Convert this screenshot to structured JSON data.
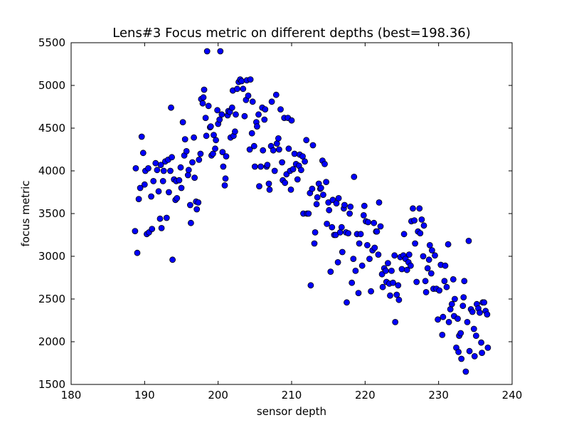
{
  "chart_data": {
    "type": "scatter",
    "title": "Lens#3 Focus metric on different depths (best=198.36)",
    "xlabel": "sensor depth",
    "ylabel": "focus metric",
    "xlim": [
      180,
      240
    ],
    "ylim": [
      1500,
      5500
    ],
    "xticks": [
      180,
      190,
      200,
      210,
      220,
      230,
      240
    ],
    "yticks": [
      1500,
      2000,
      2500,
      3000,
      3500,
      4000,
      4500,
      5000,
      5500
    ],
    "grid": false,
    "legend": "none",
    "marker_color": "#0000ff",
    "marker_edge": "#000000",
    "points": [
      [
        188.7,
        3295
      ],
      [
        188.8,
        4030
      ],
      [
        189.0,
        3040
      ],
      [
        189.2,
        3670
      ],
      [
        189.4,
        3800
      ],
      [
        189.6,
        4400
      ],
      [
        189.8,
        4210
      ],
      [
        190.0,
        3840
      ],
      [
        190.1,
        4000
      ],
      [
        190.3,
        3260
      ],
      [
        190.5,
        4030
      ],
      [
        190.6,
        3280
      ],
      [
        190.9,
        3700
      ],
      [
        191.0,
        3320
      ],
      [
        191.2,
        3880
      ],
      [
        191.5,
        4090
      ],
      [
        191.7,
        4010
      ],
      [
        191.9,
        3760
      ],
      [
        192.1,
        3440
      ],
      [
        192.2,
        4070
      ],
      [
        192.3,
        3330
      ],
      [
        192.5,
        3880
      ],
      [
        192.6,
        4000
      ],
      [
        192.8,
        4110
      ],
      [
        193.0,
        3450
      ],
      [
        193.2,
        4130
      ],
      [
        193.3,
        3750
      ],
      [
        193.5,
        4000
      ],
      [
        193.6,
        4740
      ],
      [
        193.7,
        4160
      ],
      [
        193.8,
        2960
      ],
      [
        194.0,
        3900
      ],
      [
        194.2,
        3660
      ],
      [
        194.3,
        3880
      ],
      [
        194.4,
        3680
      ],
      [
        194.7,
        3890
      ],
      [
        194.9,
        4040
      ],
      [
        195.0,
        3800
      ],
      [
        195.2,
        4570
      ],
      [
        195.4,
        4180
      ],
      [
        195.5,
        4370
      ],
      [
        195.7,
        4230
      ],
      [
        195.9,
        3950
      ],
      [
        196.0,
        4010
      ],
      [
        196.2,
        3600
      ],
      [
        196.3,
        3390
      ],
      [
        196.5,
        4100
      ],
      [
        196.7,
        4390
      ],
      [
        196.8,
        3920
      ],
      [
        197.0,
        3640
      ],
      [
        197.1,
        3550
      ],
      [
        197.3,
        3630
      ],
      [
        197.4,
        4130
      ],
      [
        197.6,
        4200
      ],
      [
        197.7,
        4840
      ],
      [
        197.9,
        4790
      ],
      [
        198.0,
        4860
      ],
      [
        198.1,
        4950
      ],
      [
        198.3,
        4620
      ],
      [
        198.4,
        4410
      ],
      [
        198.5,
        5400
      ],
      [
        198.7,
        4760
      ],
      [
        198.9,
        4510
      ],
      [
        199.0,
        4520
      ],
      [
        199.1,
        4180
      ],
      [
        199.3,
        4200
      ],
      [
        199.4,
        4420
      ],
      [
        199.6,
        4260
      ],
      [
        199.7,
        4360
      ],
      [
        199.9,
        4710
      ],
      [
        200.0,
        4550
      ],
      [
        200.2,
        4600
      ],
      [
        200.3,
        5400
      ],
      [
        200.5,
        4660
      ],
      [
        200.6,
        4220
      ],
      [
        200.7,
        4050
      ],
      [
        200.9,
        3830
      ],
      [
        201.0,
        3910
      ],
      [
        201.1,
        4170
      ],
      [
        201.3,
        4650
      ],
      [
        201.4,
        4700
      ],
      [
        201.6,
        4690
      ],
      [
        201.7,
        4390
      ],
      [
        201.9,
        4740
      ],
      [
        202.0,
        4940
      ],
      [
        202.1,
        4410
      ],
      [
        202.3,
        4460
      ],
      [
        202.4,
        4660
      ],
      [
        202.6,
        4960
      ],
      [
        202.8,
        5040
      ],
      [
        203.0,
        5070
      ],
      [
        203.2,
        5050
      ],
      [
        203.4,
        4960
      ],
      [
        203.6,
        4640
      ],
      [
        203.8,
        4830
      ],
      [
        203.9,
        5060
      ],
      [
        204.1,
        4880
      ],
      [
        204.3,
        4250
      ],
      [
        204.4,
        5070
      ],
      [
        204.6,
        4440
      ],
      [
        204.7,
        4810
      ],
      [
        204.9,
        4290
      ],
      [
        205.0,
        4050
      ],
      [
        205.2,
        4570
      ],
      [
        205.3,
        4520
      ],
      [
        205.5,
        4660
      ],
      [
        205.6,
        3820
      ],
      [
        205.8,
        4050
      ],
      [
        206.0,
        4740
      ],
      [
        206.1,
        4240
      ],
      [
        206.3,
        4600
      ],
      [
        206.4,
        4720
      ],
      [
        206.6,
        4050
      ],
      [
        206.7,
        4070
      ],
      [
        206.9,
        3850
      ],
      [
        207.0,
        3780
      ],
      [
        207.2,
        4290
      ],
      [
        207.3,
        4810
      ],
      [
        207.5,
        4240
      ],
      [
        207.7,
        4000
      ],
      [
        207.9,
        4890
      ],
      [
        208.0,
        4320
      ],
      [
        208.2,
        4380
      ],
      [
        208.3,
        4250
      ],
      [
        208.5,
        4720
      ],
      [
        208.7,
        4100
      ],
      [
        208.8,
        3890
      ],
      [
        209.0,
        4620
      ],
      [
        209.1,
        3860
      ],
      [
        209.3,
        3960
      ],
      [
        209.5,
        4620
      ],
      [
        209.6,
        4260
      ],
      [
        209.8,
        4000
      ],
      [
        209.9,
        3780
      ],
      [
        210.0,
        4590
      ],
      [
        210.2,
        4020
      ],
      [
        210.4,
        4200
      ],
      [
        210.6,
        4080
      ],
      [
        210.8,
        3900
      ],
      [
        211.0,
        4060
      ],
      [
        211.1,
        4190
      ],
      [
        211.3,
        4010
      ],
      [
        211.5,
        4170
      ],
      [
        211.6,
        3500
      ],
      [
        211.8,
        4110
      ],
      [
        212.0,
        4360
      ],
      [
        212.1,
        3500
      ],
      [
        212.3,
        3500
      ],
      [
        212.5,
        3740
      ],
      [
        212.6,
        2660
      ],
      [
        212.8,
        3790
      ],
      [
        212.9,
        4300
      ],
      [
        213.1,
        3150
      ],
      [
        213.2,
        3280
      ],
      [
        213.4,
        3610
      ],
      [
        213.5,
        3690
      ],
      [
        213.7,
        3850
      ],
      [
        213.9,
        3790
      ],
      [
        214.0,
        3800
      ],
      [
        214.2,
        4120
      ],
      [
        214.3,
        3720
      ],
      [
        214.5,
        4080
      ],
      [
        214.7,
        3870
      ],
      [
        214.8,
        3380
      ],
      [
        215.0,
        3630
      ],
      [
        215.1,
        3540
      ],
      [
        215.3,
        2820
      ],
      [
        215.5,
        3340
      ],
      [
        215.6,
        3660
      ],
      [
        215.8,
        3250
      ],
      [
        216.0,
        3250
      ],
      [
        216.1,
        3620
      ],
      [
        216.3,
        2930
      ],
      [
        216.4,
        3680
      ],
      [
        216.6,
        3280
      ],
      [
        216.8,
        3340
      ],
      [
        216.9,
        3050
      ],
      [
        217.1,
        3560
      ],
      [
        217.2,
        3600
      ],
      [
        217.4,
        3280
      ],
      [
        217.5,
        2460
      ],
      [
        217.7,
        3270
      ],
      [
        217.9,
        3500
      ],
      [
        218.0,
        3580
      ],
      [
        218.2,
        2690
      ],
      [
        218.4,
        2970
      ],
      [
        218.5,
        3930
      ],
      [
        218.7,
        2830
      ],
      [
        218.9,
        3260
      ],
      [
        219.1,
        2570
      ],
      [
        219.2,
        3150
      ],
      [
        219.4,
        3260
      ],
      [
        219.6,
        2890
      ],
      [
        219.8,
        3480
      ],
      [
        219.9,
        3590
      ],
      [
        220.1,
        3410
      ],
      [
        220.3,
        3130
      ],
      [
        220.4,
        3400
      ],
      [
        220.6,
        2970
      ],
      [
        220.8,
        2590
      ],
      [
        221.0,
        3070
      ],
      [
        221.2,
        3390
      ],
      [
        221.3,
        3100
      ],
      [
        221.5,
        3290
      ],
      [
        221.6,
        3290
      ],
      [
        221.8,
        3020
      ],
      [
        221.9,
        3630
      ],
      [
        222.1,
        3350
      ],
      [
        222.3,
        2790
      ],
      [
        222.4,
        2640
      ],
      [
        222.6,
        2860
      ],
      [
        222.8,
        2830
      ],
      [
        222.9,
        2700
      ],
      [
        223.1,
        2920
      ],
      [
        223.3,
        2680
      ],
      [
        223.4,
        2540
      ],
      [
        223.6,
        2830
      ],
      [
        223.8,
        2690
      ],
      [
        224.0,
        3010
      ],
      [
        224.1,
        2230
      ],
      [
        224.3,
        2550
      ],
      [
        224.5,
        2660
      ],
      [
        224.6,
        2490
      ],
      [
        224.8,
        2990
      ],
      [
        225.0,
        2850
      ],
      [
        225.2,
        3010
      ],
      [
        225.3,
        3260
      ],
      [
        225.5,
        2970
      ],
      [
        225.7,
        2840
      ],
      [
        225.9,
        2930
      ],
      [
        226.0,
        3020
      ],
      [
        226.2,
        2890
      ],
      [
        226.3,
        3410
      ],
      [
        226.5,
        3560
      ],
      [
        226.7,
        3420
      ],
      [
        226.8,
        3150
      ],
      [
        227.0,
        2700
      ],
      [
        227.2,
        3290
      ],
      [
        227.4,
        3560
      ],
      [
        227.5,
        3270
      ],
      [
        227.7,
        3430
      ],
      [
        227.9,
        3000
      ],
      [
        228.0,
        3360
      ],
      [
        228.2,
        2710
      ],
      [
        228.3,
        2580
      ],
      [
        228.5,
        2860
      ],
      [
        228.7,
        2960
      ],
      [
        228.8,
        3130
      ],
      [
        229.0,
        2800
      ],
      [
        229.1,
        3070
      ],
      [
        229.3,
        2620
      ],
      [
        229.5,
        3010
      ],
      [
        229.7,
        2620
      ],
      [
        229.9,
        2260
      ],
      [
        230.1,
        2600
      ],
      [
        230.3,
        2900
      ],
      [
        230.5,
        2080
      ],
      [
        230.6,
        2290
      ],
      [
        230.8,
        2710
      ],
      [
        230.9,
        2890
      ],
      [
        231.1,
        2640
      ],
      [
        231.3,
        3140
      ],
      [
        231.4,
        2230
      ],
      [
        231.6,
        2380
      ],
      [
        231.8,
        2440
      ],
      [
        232.0,
        2730
      ],
      [
        232.1,
        2300
      ],
      [
        232.2,
        2500
      ],
      [
        232.4,
        1930
      ],
      [
        232.6,
        2270
      ],
      [
        232.7,
        1880
      ],
      [
        232.8,
        2070
      ],
      [
        233.0,
        2100
      ],
      [
        233.1,
        1800
      ],
      [
        233.3,
        2420
      ],
      [
        233.4,
        2520
      ],
      [
        233.5,
        2710
      ],
      [
        233.7,
        1650
      ],
      [
        233.9,
        2230
      ],
      [
        234.1,
        3180
      ],
      [
        234.2,
        1890
      ],
      [
        234.4,
        2380
      ],
      [
        234.6,
        2350
      ],
      [
        234.8,
        2150
      ],
      [
        234.9,
        1830
      ],
      [
        235.1,
        2070
      ],
      [
        235.2,
        2440
      ],
      [
        235.4,
        2390
      ],
      [
        235.6,
        2340
      ],
      [
        235.8,
        1990
      ],
      [
        235.9,
        1870
      ],
      [
        236.0,
        2460
      ],
      [
        236.2,
        2460
      ],
      [
        236.4,
        2360
      ],
      [
        236.6,
        2320
      ],
      [
        236.7,
        1930
      ]
    ]
  }
}
